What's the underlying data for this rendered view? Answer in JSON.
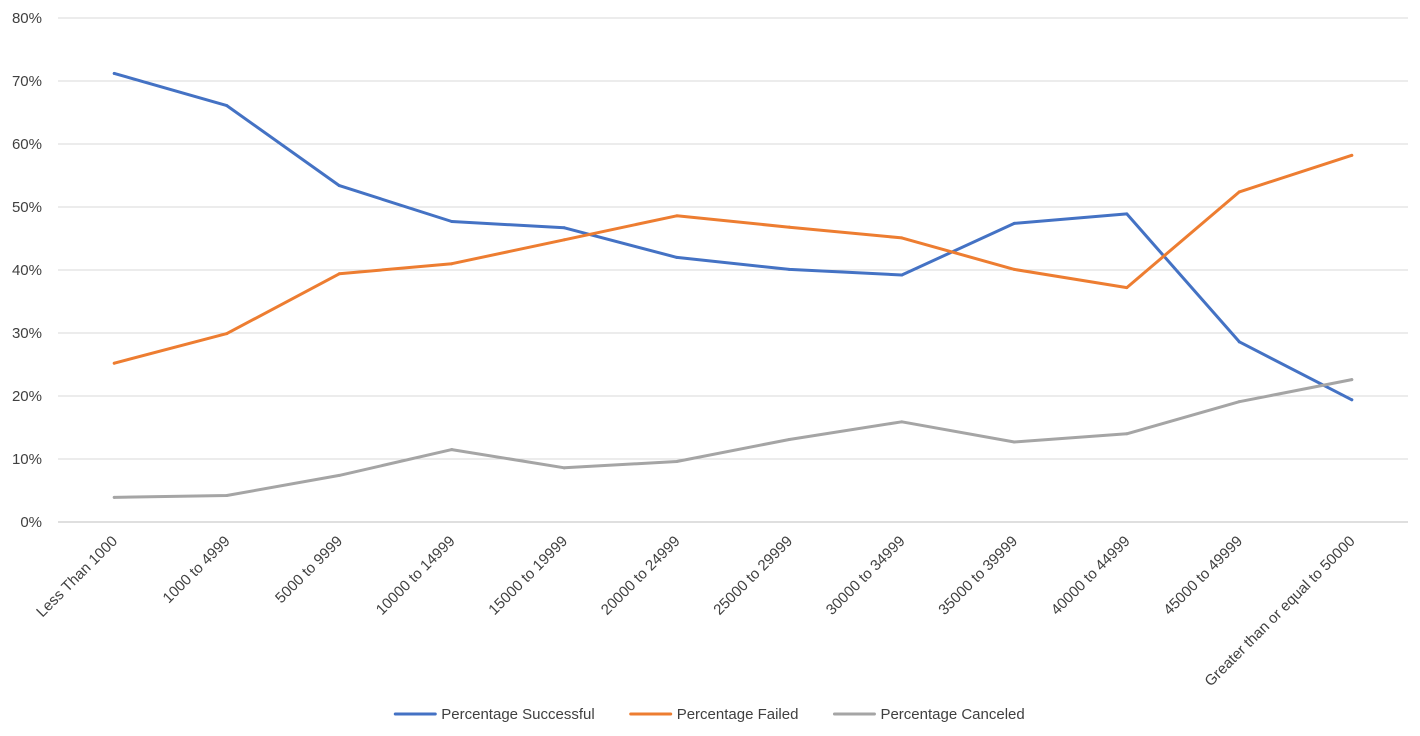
{
  "chart_data": {
    "type": "line",
    "title": "",
    "xlabel": "",
    "ylabel": "",
    "ylim": [
      0,
      80
    ],
    "y_ticks": [
      0,
      10,
      20,
      30,
      40,
      50,
      60,
      70,
      80
    ],
    "y_tick_suffix": "%",
    "grid": "horizontal",
    "legend_position": "bottom",
    "categories": [
      "Less Than 1000",
      "1000 to 4999",
      "5000 to 9999",
      "10000 to 14999",
      "15000 to 19999",
      "20000 to 24999",
      "25000 to 29999",
      "30000 to 34999",
      "35000 to 39999",
      "40000 to 44999",
      "45000 to 49999",
      "Greater than or equal to 50000"
    ],
    "series": [
      {
        "name": "Percentage Successful",
        "color": "#4472C4",
        "values": [
          71.2,
          66.1,
          53.4,
          47.7,
          46.7,
          42.0,
          40.1,
          39.2,
          47.4,
          48.9,
          28.6,
          19.4
        ]
      },
      {
        "name": "Percentage Failed",
        "color": "#ED7D31",
        "values": [
          25.2,
          29.9,
          39.4,
          41.0,
          44.8,
          48.6,
          46.8,
          45.1,
          40.1,
          37.2,
          52.4,
          58.2
        ]
      },
      {
        "name": "Percentage Canceled",
        "color": "#A5A5A5",
        "values": [
          3.9,
          4.2,
          7.4,
          11.5,
          8.6,
          9.6,
          13.1,
          15.9,
          12.7,
          14.0,
          19.1,
          22.6
        ]
      }
    ]
  }
}
